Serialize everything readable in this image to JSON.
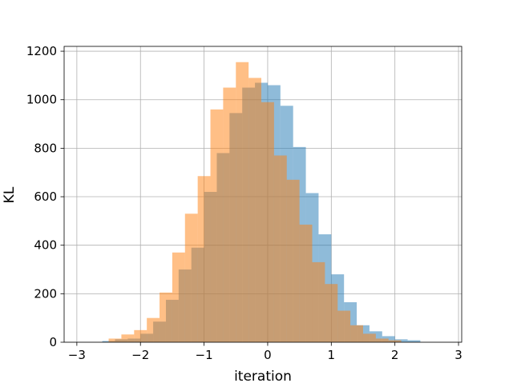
{
  "chart_data": {
    "type": "bar",
    "subtype": "histogram",
    "title": "",
    "xlabel": "iteration",
    "ylabel": "KL",
    "xlim": [
      -3.2,
      3.05
    ],
    "ylim": [
      0,
      1220
    ],
    "xticks": [
      -3,
      -2,
      -1,
      0,
      1,
      2,
      3
    ],
    "yticks": [
      0,
      200,
      400,
      600,
      800,
      1000,
      1200
    ],
    "xtick_labels": [
      "−3",
      "−2",
      "−1",
      "0",
      "1",
      "2",
      "3"
    ],
    "ytick_labels": [
      "0",
      "200",
      "400",
      "600",
      "800",
      "1000",
      "1200"
    ],
    "grid": true,
    "legend": "none",
    "series": [
      {
        "color": "#1f77b4",
        "opacity": 0.5,
        "bins": [
          {
            "x0": -2.6,
            "x1": -2.4,
            "value": 5
          },
          {
            "x0": -2.4,
            "x1": -2.2,
            "value": 12
          },
          {
            "x0": -2.2,
            "x1": -2.0,
            "value": 15
          },
          {
            "x0": -2.0,
            "x1": -1.8,
            "value": 35
          },
          {
            "x0": -1.8,
            "x1": -1.6,
            "value": 85
          },
          {
            "x0": -1.6,
            "x1": -1.4,
            "value": 175
          },
          {
            "x0": -1.4,
            "x1": -1.2,
            "value": 300
          },
          {
            "x0": -1.2,
            "x1": -1.0,
            "value": 390
          },
          {
            "x0": -1.0,
            "x1": -0.8,
            "value": 620
          },
          {
            "x0": -0.8,
            "x1": -0.6,
            "value": 780
          },
          {
            "x0": -0.6,
            "x1": -0.4,
            "value": 945
          },
          {
            "x0": -0.4,
            "x1": -0.2,
            "value": 1050
          },
          {
            "x0": -0.2,
            "x1": 0.0,
            "value": 1070
          },
          {
            "x0": 0.0,
            "x1": 0.2,
            "value": 1060
          },
          {
            "x0": 0.2,
            "x1": 0.4,
            "value": 975
          },
          {
            "x0": 0.4,
            "x1": 0.6,
            "value": 805
          },
          {
            "x0": 0.6,
            "x1": 0.8,
            "value": 615
          },
          {
            "x0": 0.8,
            "x1": 1.0,
            "value": 445
          },
          {
            "x0": 1.0,
            "x1": 1.2,
            "value": 280
          },
          {
            "x0": 1.2,
            "x1": 1.4,
            "value": 165
          },
          {
            "x0": 1.4,
            "x1": 1.6,
            "value": 70
          },
          {
            "x0": 1.6,
            "x1": 1.8,
            "value": 45
          },
          {
            "x0": 1.8,
            "x1": 2.0,
            "value": 25
          },
          {
            "x0": 2.0,
            "x1": 2.2,
            "value": 12
          },
          {
            "x0": 2.2,
            "x1": 2.4,
            "value": 8
          }
        ]
      },
      {
        "color": "#ff7f0e",
        "opacity": 0.5,
        "bins": [
          {
            "x0": -2.5,
            "x1": -2.3,
            "value": 15
          },
          {
            "x0": -2.3,
            "x1": -2.1,
            "value": 32
          },
          {
            "x0": -2.1,
            "x1": -1.9,
            "value": 50
          },
          {
            "x0": -1.9,
            "x1": -1.7,
            "value": 100
          },
          {
            "x0": -1.7,
            "x1": -1.5,
            "value": 205
          },
          {
            "x0": -1.5,
            "x1": -1.3,
            "value": 370
          },
          {
            "x0": -1.3,
            "x1": -1.1,
            "value": 530
          },
          {
            "x0": -1.1,
            "x1": -0.9,
            "value": 685
          },
          {
            "x0": -0.9,
            "x1": -0.7,
            "value": 960
          },
          {
            "x0": -0.7,
            "x1": -0.5,
            "value": 1050
          },
          {
            "x0": -0.5,
            "x1": -0.3,
            "value": 1155
          },
          {
            "x0": -0.3,
            "x1": -0.1,
            "value": 1090
          },
          {
            "x0": -0.1,
            "x1": 0.1,
            "value": 990
          },
          {
            "x0": 0.1,
            "x1": 0.3,
            "value": 770
          },
          {
            "x0": 0.3,
            "x1": 0.5,
            "value": 670
          },
          {
            "x0": 0.5,
            "x1": 0.7,
            "value": 485
          },
          {
            "x0": 0.7,
            "x1": 0.9,
            "value": 330
          },
          {
            "x0": 0.9,
            "x1": 1.1,
            "value": 240
          },
          {
            "x0": 1.1,
            "x1": 1.3,
            "value": 130
          },
          {
            "x0": 1.3,
            "x1": 1.5,
            "value": 70
          },
          {
            "x0": 1.5,
            "x1": 1.7,
            "value": 35
          },
          {
            "x0": 1.7,
            "x1": 1.9,
            "value": 15
          },
          {
            "x0": 1.9,
            "x1": 2.1,
            "value": 8
          }
        ]
      }
    ]
  }
}
